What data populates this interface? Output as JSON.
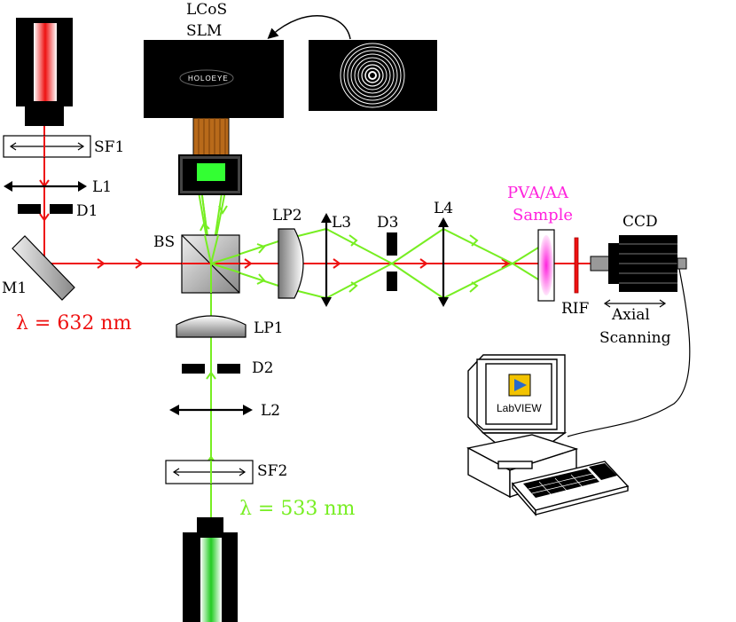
{
  "labels": {
    "slm_line1": "LCoS",
    "slm_line2": "SLM",
    "holoeye": "HOLOEYE",
    "sf1": "SF1",
    "l1": "L1",
    "d1": "D1",
    "m1": "M1",
    "bs": "BS",
    "lp2": "LP2",
    "l3": "L3",
    "d3": "D3",
    "l4": "L4",
    "sample_line1": "PVA/AA",
    "sample_line2": "Sample",
    "ccd": "CCD",
    "rif": "RIF",
    "axial": "Axial",
    "scanning": "Scanning",
    "lp1": "LP1",
    "d2": "D2",
    "l2": "L2",
    "sf2": "SF2",
    "red_wavelength": "λ = 632 nm",
    "green_wavelength": "λ = 533 nm",
    "labview": "LabVIEW"
  },
  "colors": {
    "red_beam": "#ee1111",
    "green_beam": "#77ee22",
    "magenta": "#ff22dd",
    "black": "#000000"
  }
}
